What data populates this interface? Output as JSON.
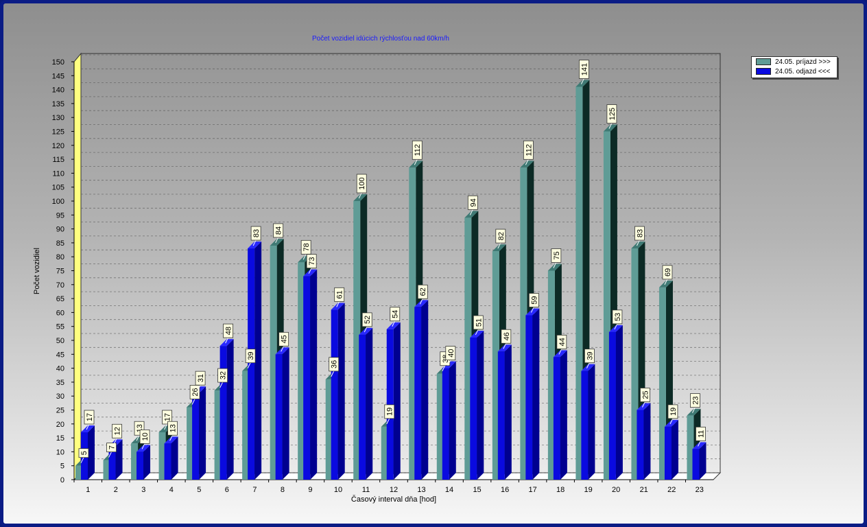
{
  "chart_data": {
    "type": "bar",
    "title": "Počet vozidiel idúcich rýchlosťou nad 60km/h",
    "xlabel": "Časový interval dňa [hod]",
    "ylabel": "Počet vozidiel",
    "ylim": [
      0,
      150
    ],
    "ytick_step": 5,
    "grid": true,
    "legend_position": "top-right",
    "categories": [
      "1",
      "2",
      "3",
      "4",
      "5",
      "6",
      "7",
      "8",
      "9",
      "10",
      "11",
      "12",
      "13",
      "14",
      "15",
      "16",
      "17",
      "18",
      "19",
      "20",
      "21",
      "22",
      "23"
    ],
    "series": [
      {
        "name": "24.05. príjazd >>>",
        "color": "#5f9c96",
        "values": [
          5,
          7,
          13,
          17,
          26,
          32,
          39,
          84,
          78,
          36,
          100,
          19,
          112,
          38,
          94,
          82,
          112,
          75,
          141,
          125,
          83,
          69,
          23
        ]
      },
      {
        "name": "24.05. odjazd <<<",
        "color": "#0a0ae0",
        "values": [
          17,
          12,
          10,
          13,
          31,
          48,
          83,
          45,
          73,
          61,
          52,
          54,
          62,
          40,
          51,
          46,
          59,
          44,
          39,
          53,
          25,
          19,
          11
        ]
      }
    ]
  }
}
